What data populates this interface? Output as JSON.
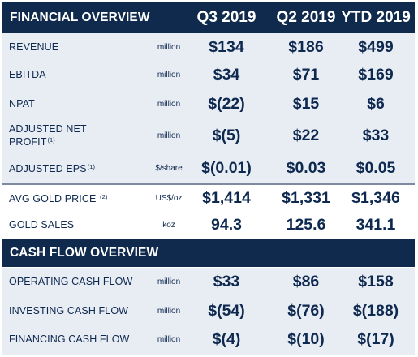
{
  "financial": {
    "title": "FINANCIAL OVERVIEW",
    "columns": [
      "Q3 2019",
      "Q2 2019",
      "YTD 2019"
    ],
    "rows": [
      {
        "label": "REVENUE",
        "sup": "",
        "unit": "million",
        "values": [
          "$134",
          "$186",
          "$499"
        ]
      },
      {
        "label": "EBITDA",
        "sup": "",
        "unit": "million",
        "values": [
          "$34",
          "$71",
          "$169"
        ]
      },
      {
        "label": "NPAT",
        "sup": "",
        "unit": "million",
        "values": [
          "$(22)",
          "$15",
          "$6"
        ]
      },
      {
        "label": "ADJUSTED NET PROFIT",
        "sup": "(1)",
        "unit": "million",
        "values": [
          "$(5)",
          "$22",
          "$33"
        ]
      },
      {
        "label": "ADJUSTED EPS",
        "sup": "(1)",
        "unit": "$/share",
        "values": [
          "$(0.01)",
          "$0.03",
          "$0.05"
        ]
      },
      {
        "label": "AVG GOLD PRICE",
        "sup": "(2)",
        "unit": "US$/oz",
        "values": [
          "$1,414",
          "$1,331",
          "$1,346"
        ]
      },
      {
        "label": "GOLD SALES",
        "sup": "",
        "unit": "koz",
        "values": [
          "94.3",
          "125.6",
          "341.1"
        ]
      }
    ]
  },
  "cashflow": {
    "title": "CASH FLOW OVERVIEW",
    "rows": [
      {
        "label": "OPERATING CASH FLOW",
        "unit": "million",
        "values": [
          "$33",
          "$86",
          "$158"
        ]
      },
      {
        "label": "INVESTING CASH FLOW",
        "unit": "million",
        "values": [
          "$(54)",
          "$(76)",
          "$(188)"
        ]
      },
      {
        "label": "FINANCING CASH FLOW",
        "unit": "million",
        "values": [
          "$(4)",
          "$(10)",
          "$(17)"
        ]
      }
    ]
  },
  "colors": {
    "header_bg": "#0f2a4d",
    "band_bg": "#e8ecf3",
    "text": "#0e2950"
  }
}
